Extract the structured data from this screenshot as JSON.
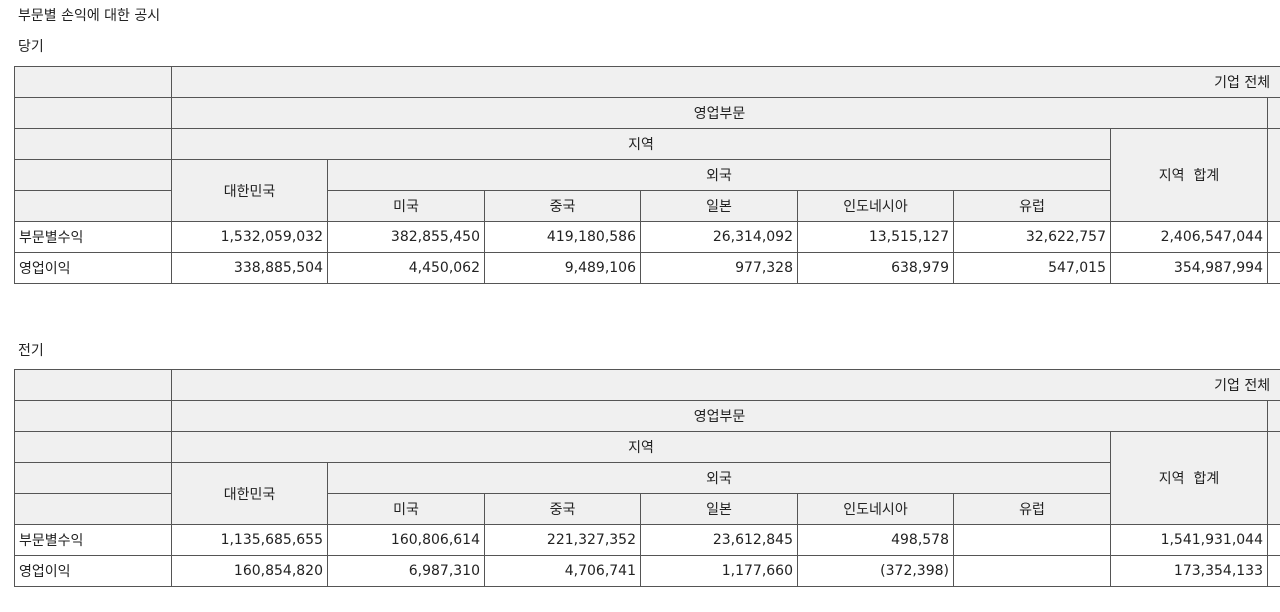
{
  "page_title": "부문별 손익에 대한 공시",
  "sections": [
    {
      "label": "당기",
      "header": {
        "top": "기업 전체",
        "segment": "영업부문",
        "region": "지역",
        "korea": "대한민국",
        "foreign": "외국",
        "countries": [
          "미국",
          "중국",
          "일본",
          "인도네시아",
          "유럽"
        ],
        "region_total": "지역  합계"
      },
      "rows": [
        {
          "label": "부문별수익",
          "values": [
            "1,532,059,032",
            "382,855,450",
            "419,180,586",
            "26,314,092",
            "13,515,127",
            "32,622,757",
            "2,406,547,044"
          ]
        },
        {
          "label": "영업이익",
          "values": [
            "338,885,504",
            "4,450,062",
            "9,489,106",
            "977,328",
            "638,979",
            "547,015",
            "354,987,994"
          ]
        }
      ]
    },
    {
      "label": "전기",
      "header": {
        "top": "기업 전체",
        "segment": "영업부문",
        "region": "지역",
        "korea": "대한민국",
        "foreign": "외국",
        "countries": [
          "미국",
          "중국",
          "일본",
          "인도네시아",
          "유럽"
        ],
        "region_total": "지역  합계"
      },
      "rows": [
        {
          "label": "부문별수익",
          "values": [
            "1,135,685,655",
            "160,806,614",
            "221,327,352",
            "23,612,845",
            "498,578",
            "",
            "1,541,931,044"
          ]
        },
        {
          "label": "영업이익",
          "values": [
            "160,854,820",
            "6,987,310",
            "4,706,741",
            "1,177,660",
            "(372,398)",
            "",
            "173,354,133"
          ]
        }
      ]
    }
  ]
}
